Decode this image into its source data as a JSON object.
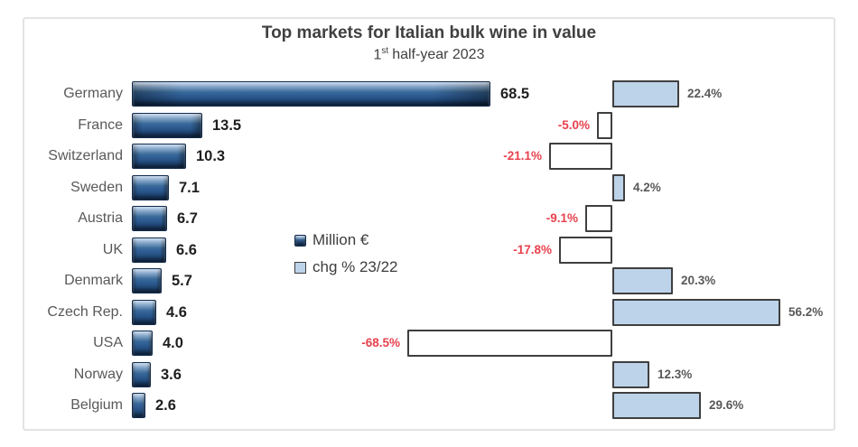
{
  "header": {
    "title": "Top markets for Italian bulk wine in value",
    "subtitle_prefix": "1",
    "subtitle_sup": "st",
    "subtitle_rest": "half-year 2023",
    "subtitle_full": "1st half-year 2023"
  },
  "legend": {
    "items": [
      {
        "swatch": "dark-blue-3d-square",
        "label": "Million €"
      },
      {
        "swatch": "light-blue-outlined-square",
        "label": "chg % 23/22"
      }
    ]
  },
  "colors": {
    "dark_bar": "#2F5E94",
    "dark_bar_border": "#122C4E",
    "light_bar_fill": "#BDD3EA",
    "bar_outline": "#3F3F3F",
    "negative_fill": "#FFFFFF",
    "negative_text": "#E8414D",
    "positive_text": "#595959",
    "country_text": "#595959",
    "value_text": "#1F1F1F",
    "title_text": "#404040",
    "panel_border": "#E3E3E3"
  },
  "chart_data": {
    "type": "bar",
    "orientation": "horizontal",
    "title": "Top markets for Italian bulk wine in value",
    "subtitle": "1st half-year 2023",
    "grid": false,
    "legend_position": "center",
    "categories": [
      "Germany",
      "France",
      "Switzerland",
      "Sweden",
      "Austria",
      "UK",
      "Denmark",
      "Czech Rep.",
      "USA",
      "Norway",
      "Belgium"
    ],
    "series": [
      {
        "name": "Million €",
        "style": "3d-dark-blue",
        "values": [
          68.5,
          13.5,
          10.3,
          7.1,
          6.7,
          6.6,
          5.7,
          4.6,
          4.0,
          3.6,
          2.6
        ]
      },
      {
        "name": "chg % 23/22",
        "unit": "%",
        "positive_color": "#BDD3EA",
        "negative_color": "#FFFFFF",
        "values": [
          22.4,
          -5.0,
          -21.1,
          4.2,
          -9.1,
          -17.8,
          20.3,
          56.2,
          -68.5,
          12.3,
          29.6
        ]
      }
    ],
    "value_labels": [
      "68.5",
      "13.5",
      "10.3",
      "7.1",
      "6.7",
      "6.6",
      "5.7",
      "4.6",
      "4.0",
      "3.6",
      "2.6"
    ],
    "change_labels": [
      "22.4%",
      "-5.0%",
      "-21.1%",
      "4.2%",
      "-9.1%",
      "-17.8%",
      "20.3%",
      "56.2%",
      "-68.5%",
      "12.3%",
      "29.6%"
    ]
  }
}
